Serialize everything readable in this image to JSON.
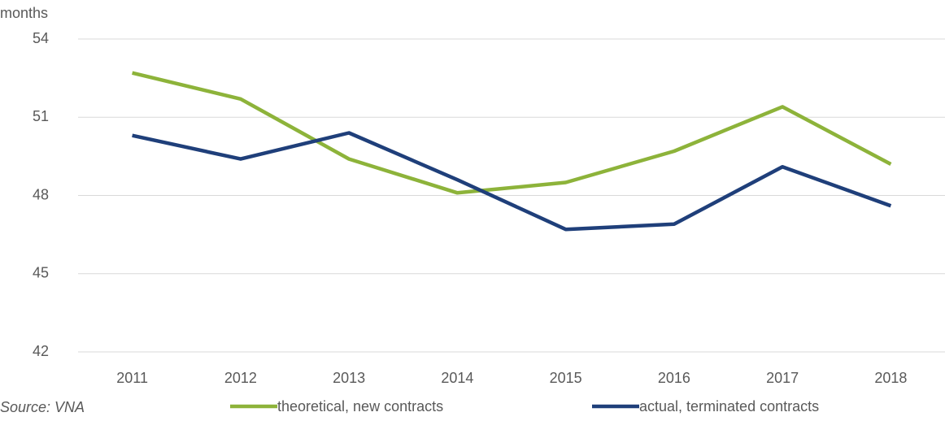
{
  "chart_data": {
    "type": "line",
    "y_axis_label": "months",
    "source": "Source: VNA",
    "categories": [
      "2011",
      "2012",
      "2013",
      "2014",
      "2015",
      "2016",
      "2017",
      "2018"
    ],
    "series": [
      {
        "name": "theoretical, new contracts",
        "color": "#8db33a",
        "values": [
          52.7,
          51.7,
          49.4,
          48.1,
          48.5,
          49.7,
          51.4,
          49.2
        ]
      },
      {
        "name": "actual, terminated contracts",
        "color": "#1f3f7a",
        "values": [
          50.3,
          49.4,
          50.4,
          48.6,
          46.7,
          46.9,
          49.1,
          47.6
        ]
      }
    ],
    "ylim": [
      42,
      54
    ],
    "yticks": [
      42,
      45,
      48,
      51,
      54
    ],
    "grid": true
  }
}
